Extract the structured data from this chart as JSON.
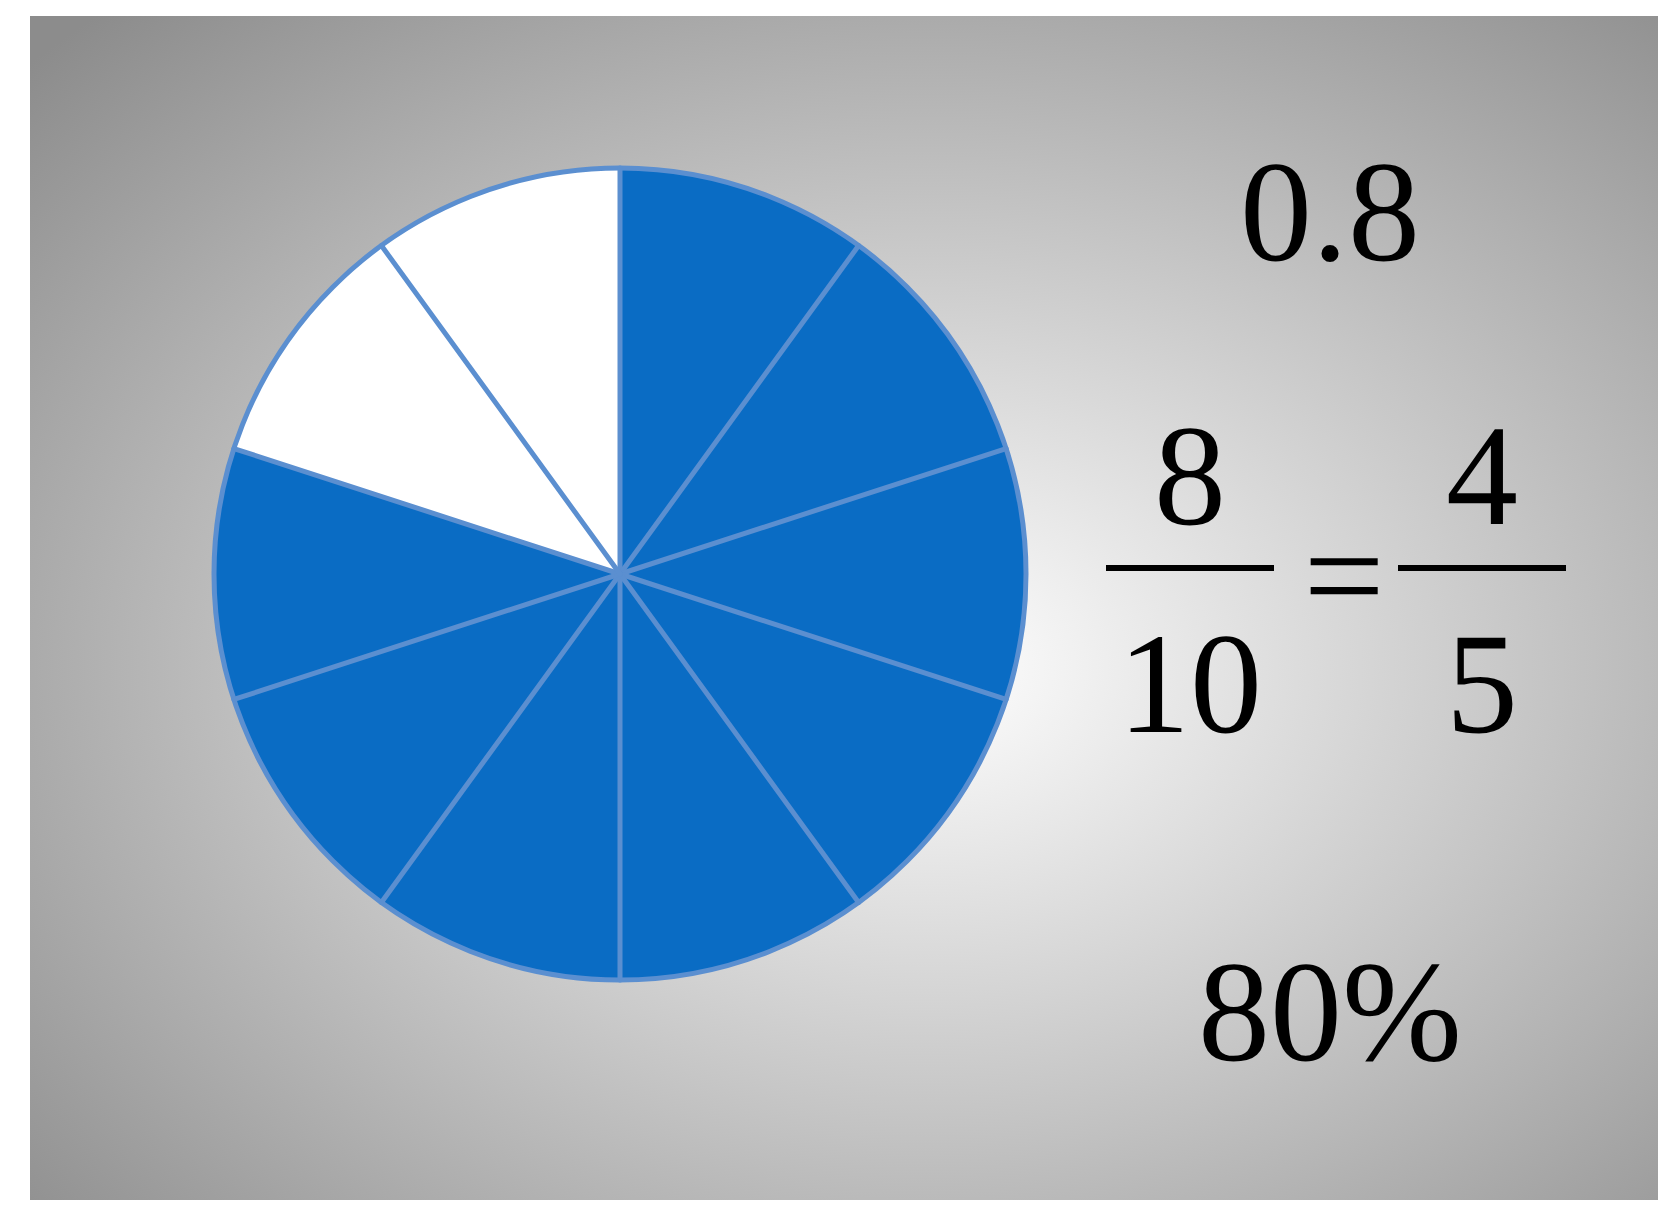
{
  "chart_data": {
    "type": "pie",
    "categories": [
      null,
      null
    ],
    "values": [
      80,
      20
    ],
    "colors": [
      "#0a6cc4",
      "#ffffff"
    ],
    "annotations": [
      "0.8",
      "8",
      "10",
      "=",
      "4",
      "5",
      "80%"
    ]
  }
}
